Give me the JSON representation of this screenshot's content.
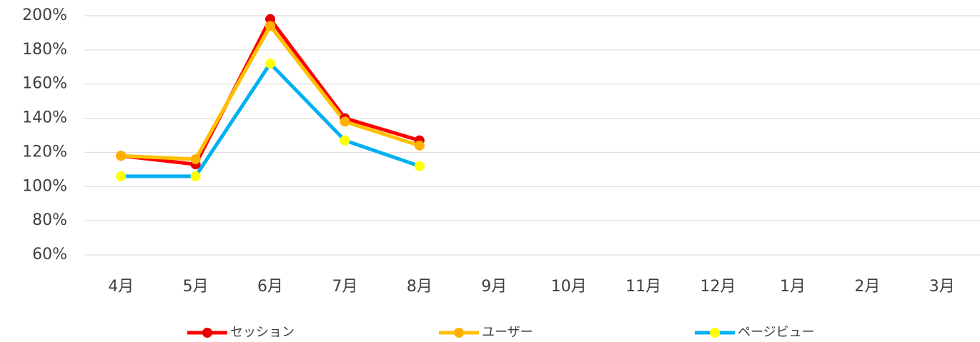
{
  "chart_data": {
    "type": "line",
    "categories": [
      "4月",
      "5月",
      "6月",
      "7月",
      "8月",
      "9月",
      "10月",
      "11月",
      "12月",
      "1月",
      "2月",
      "3月"
    ],
    "series": [
      {
        "name": "セッション",
        "color": "#ff0000",
        "marker_color": "#e60000",
        "values": [
          118,
          113,
          198,
          140,
          127,
          null,
          null,
          null,
          null,
          null,
          null,
          null
        ]
      },
      {
        "name": "ユーザー",
        "color": "#ffc000",
        "marker_color": "#ffb000",
        "values": [
          118,
          116,
          194,
          138,
          124,
          null,
          null,
          null,
          null,
          null,
          null,
          null
        ]
      },
      {
        "name": "ページビュー",
        "color": "#00b0f0",
        "marker_color": "#ffff00",
        "values": [
          106,
          106,
          172,
          127,
          112,
          null,
          null,
          null,
          null,
          null,
          null,
          null
        ]
      }
    ],
    "ylim": [
      60,
      200
    ],
    "yticks": [
      {
        "value": 60,
        "label": "60%"
      },
      {
        "value": 80,
        "label": "80%"
      },
      {
        "value": 100,
        "label": "100%"
      },
      {
        "value": 120,
        "label": "120%"
      },
      {
        "value": 140,
        "label": "140%"
      },
      {
        "value": 160,
        "label": "160%"
      },
      {
        "value": 180,
        "label": "180%"
      },
      {
        "value": 200,
        "label": "200%"
      }
    ],
    "grid": true,
    "legend": "bottom"
  }
}
